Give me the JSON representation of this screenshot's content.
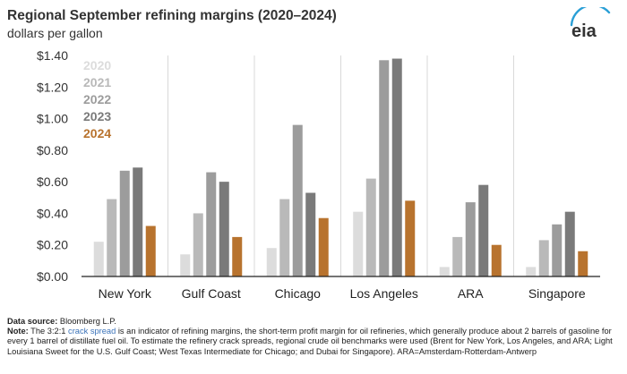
{
  "header": {
    "title": "Regional September refining margins (2020–2024)",
    "subtitle": "dollars per gallon",
    "logo_text": "eia"
  },
  "chart_data": {
    "type": "bar",
    "categories": [
      "New York",
      "Gulf Coast",
      "Chicago",
      "Los Angeles",
      "ARA",
      "Singapore"
    ],
    "series": [
      {
        "name": "2020",
        "color": "#dcdcdc",
        "values": [
          0.22,
          0.14,
          0.18,
          0.41,
          0.06,
          0.06
        ]
      },
      {
        "name": "2021",
        "color": "#b9b9b9",
        "values": [
          0.49,
          0.4,
          0.49,
          0.62,
          0.25,
          0.23
        ]
      },
      {
        "name": "2022",
        "color": "#9c9c9c",
        "values": [
          0.67,
          0.66,
          0.96,
          1.37,
          0.47,
          0.33
        ]
      },
      {
        "name": "2023",
        "color": "#7a7a7a",
        "values": [
          0.69,
          0.6,
          0.53,
          1.38,
          0.58,
          0.41
        ]
      },
      {
        "name": "2024",
        "color": "#b8732e",
        "values": [
          0.32,
          0.25,
          0.37,
          0.48,
          0.2,
          0.16
        ]
      }
    ],
    "yticks": [
      "$0.00",
      "$0.20",
      "$0.40",
      "$0.60",
      "$0.80",
      "$1.00",
      "$1.20",
      "$1.40"
    ],
    "ylim": [
      0,
      1.4
    ],
    "legend_position": "top-left",
    "grid": "vertical-separators"
  },
  "footnote": {
    "source_label": "Data source:",
    "source_text": " Bloomberg L.P.",
    "note_label": "Note:",
    "note_pre": " The 3:2:1 ",
    "note_link": "crack spread",
    "note_post": " is an indicator of refining margins, the short-term profit margin for oil refineries, which generally produce about 2 barrels of gasoline for every 1 barrel of distillate fuel oil. To estimate the refinery crack spreads, regional crude oil benchmarks were used (Brent for New York, Los Angeles, and ARA; Light Louisiana Sweet for the U.S. Gulf Coast; West Texas Intermediate for Chicago; and Dubai for Singapore). ARA=Amsterdam-Rotterdam-Antwerp"
  }
}
